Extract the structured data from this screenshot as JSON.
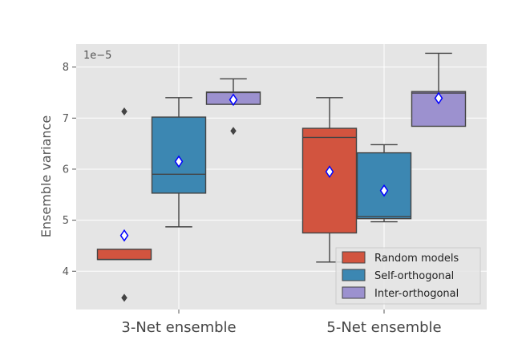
{
  "chart_data": {
    "type": "box",
    "ylabel": "Ensemble variance",
    "y_offset_label": "1e−5",
    "y_scale": 1e-05,
    "ylim": [
      3.25,
      8.45
    ],
    "yticks": [
      4,
      5,
      6,
      7,
      8
    ],
    "ytick_labels": [
      "4",
      "5",
      "6",
      "7",
      "8"
    ],
    "categories": [
      "3-Net ensemble",
      "5-Net ensemble"
    ],
    "grid": true,
    "legend_position": "lower-right",
    "series": [
      {
        "name": "Random models",
        "color": "#d2543f",
        "boxes": [
          {
            "whisker_low": 4.23,
            "q1": 4.23,
            "median": 4.23,
            "q3": 4.43,
            "whisker_high": 4.43,
            "mean": 4.7,
            "fliers": [
              7.13,
              3.48
            ]
          },
          {
            "whisker_low": 4.18,
            "q1": 4.75,
            "median": 6.62,
            "q3": 6.8,
            "whisker_high": 7.4,
            "mean": 5.95,
            "fliers": []
          }
        ]
      },
      {
        "name": "Self-orthogonal",
        "color": "#3c87b2",
        "boxes": [
          {
            "whisker_low": 4.87,
            "q1": 5.53,
            "median": 5.9,
            "q3": 7.02,
            "whisker_high": 7.4,
            "mean": 6.15,
            "fliers": []
          },
          {
            "whisker_low": 4.97,
            "q1": 5.03,
            "median": 5.07,
            "q3": 6.32,
            "whisker_high": 6.48,
            "mean": 5.58,
            "fliers": []
          }
        ]
      },
      {
        "name": "Inter-orthogonal",
        "color": "#9c91cf",
        "boxes": [
          {
            "whisker_low": 7.27,
            "q1": 7.27,
            "median": 7.5,
            "q3": 7.51,
            "whisker_high": 7.77,
            "mean": 7.36,
            "fliers": [
              6.75
            ]
          },
          {
            "whisker_low": 6.84,
            "q1": 6.84,
            "median": 7.49,
            "q3": 7.52,
            "whisker_high": 8.27,
            "mean": 7.39,
            "fliers": []
          }
        ]
      }
    ]
  }
}
